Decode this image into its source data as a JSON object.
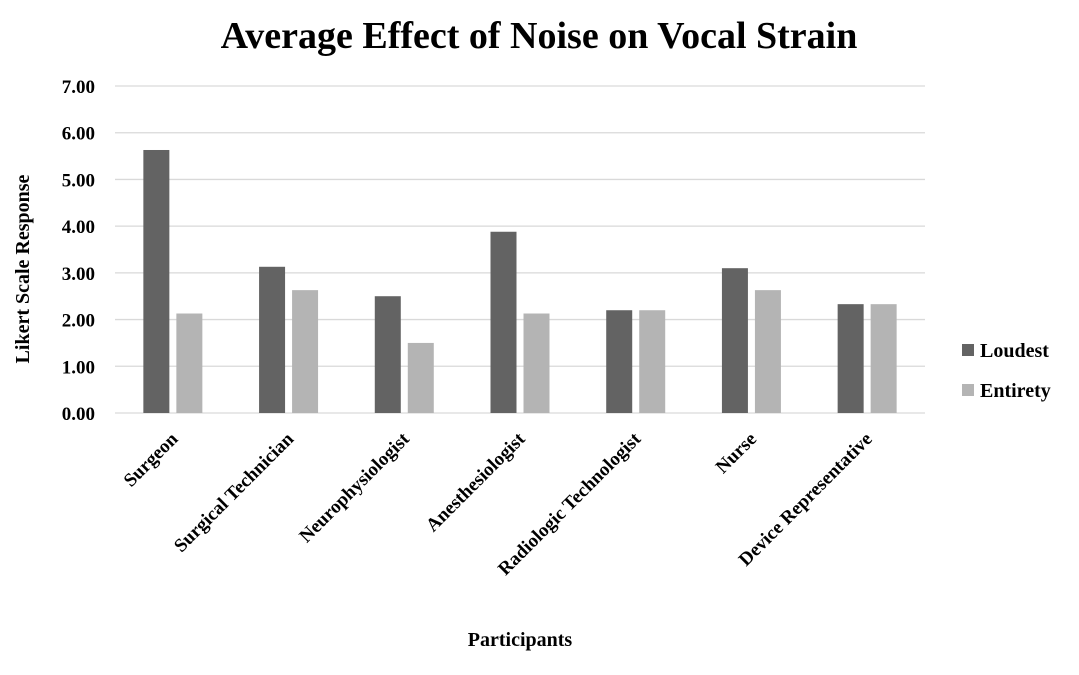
{
  "chart_data": {
    "type": "bar",
    "title": "Average Effect of Noise on Vocal Strain",
    "xlabel": "Participants",
    "ylabel": "Likert Scale Response",
    "ylim": [
      0,
      7
    ],
    "yticks": [
      "0.00",
      "1.00",
      "2.00",
      "3.00",
      "4.00",
      "5.00",
      "6.00",
      "7.00"
    ],
    "grid": true,
    "legend_position": "right",
    "categories": [
      "Surgeon",
      "Surgical Technician",
      "Neurophysiologist",
      "Anesthesiologist",
      "Radiologic Technologist",
      "Nurse",
      "Device Representative"
    ],
    "series": [
      {
        "name": "Loudest",
        "color": "#636363",
        "values": [
          5.63,
          3.13,
          2.5,
          3.88,
          2.2,
          3.1,
          2.33
        ]
      },
      {
        "name": "Entirety",
        "color": "#b4b4b4",
        "values": [
          2.13,
          2.63,
          1.5,
          2.13,
          2.2,
          2.63,
          2.33
        ]
      }
    ]
  }
}
